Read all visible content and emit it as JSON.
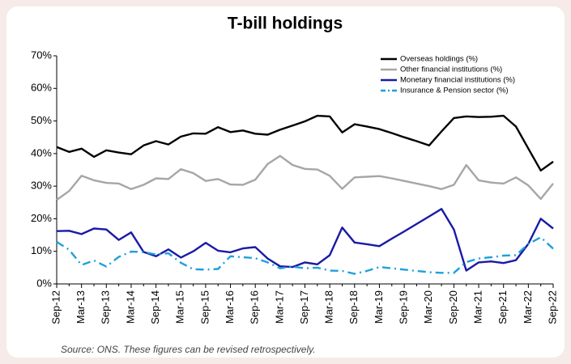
{
  "chart_data": {
    "type": "line",
    "title": "T-bill holdings",
    "source": "Source: ONS. These figures can be revised retrospectively.",
    "categories": [
      "Sep-12",
      null,
      "Mar-13",
      null,
      "Sep-13",
      null,
      "Mar-14",
      null,
      "Sep-14",
      null,
      "Mar-15",
      null,
      "Sep-15",
      null,
      "Mar-16",
      null,
      "Sep-16",
      null,
      "Mar-17",
      null,
      "Sep-17",
      null,
      "Mar-18",
      null,
      "Sep-18",
      null,
      "Mar-19",
      null,
      "Sep-19",
      null,
      "Mar-20",
      null,
      "Sep-20",
      null,
      "Mar-21",
      null,
      "Sep-21",
      null,
      "Mar-22",
      null,
      "Sep-22"
    ],
    "series": [
      {
        "name": "Overseas holdings (%)",
        "color": "#000000",
        "linestyle": "solid",
        "values": [
          42,
          40.5,
          41.5,
          39,
          41,
          40.3,
          39.8,
          42.5,
          43.8,
          42.8,
          45.2,
          46.2,
          46.1,
          48.1,
          46.6,
          47.1,
          46.1,
          45.8,
          47.3,
          48.6,
          49.9,
          51.6,
          51.4,
          46.5,
          49,
          48.3,
          47.5,
          46.3,
          45,
          43.8,
          42.5,
          46.8,
          50.9,
          51.4,
          51.2,
          51.3,
          51.6,
          48.3,
          41.5,
          34.8,
          37.5
        ]
      },
      {
        "name": "Other financial institutions (%)",
        "color": "#a6a6a6",
        "linestyle": "solid",
        "values": [
          25.8,
          28.5,
          33.2,
          31.8,
          31,
          30.8,
          29.1,
          30.4,
          32.4,
          32.2,
          35.2,
          34,
          31.6,
          32.2,
          30.5,
          30.4,
          32,
          36.8,
          39.3,
          36.5,
          35.3,
          35.1,
          33.2,
          29.2,
          32.7,
          32.9,
          33.1,
          32.4,
          31.6,
          30.8,
          30,
          29.1,
          30.4,
          36.5,
          31.8,
          31.1,
          30.8,
          32.7,
          30.2,
          26.1,
          30.8
        ]
      },
      {
        "name": "Monetary financial institutions (%)",
        "color": "#1a1aa6",
        "linestyle": "solid",
        "values": [
          16.2,
          16.3,
          15.3,
          17,
          16.7,
          13.5,
          15.8,
          9.8,
          8.5,
          10.6,
          8.1,
          10,
          12.6,
          10.2,
          9.7,
          10.9,
          11.3,
          7.8,
          5.4,
          5.2,
          6.6,
          6,
          8.8,
          17.3,
          12.7,
          12.2,
          11.6,
          13.9,
          16.1,
          18.4,
          20.7,
          23,
          16.7,
          4.1,
          6.6,
          6.9,
          6.4,
          7.3,
          12.3,
          20,
          17
        ]
      },
      {
        "name": "Insurance & Pension sector (%)",
        "color": "#1ea0dc",
        "linestyle": "dashdot",
        "values": [
          12.9,
          10.5,
          5.8,
          7.2,
          5.3,
          8.3,
          9.9,
          9.8,
          9,
          9.4,
          6.5,
          4.5,
          4.4,
          4.6,
          8.5,
          8.2,
          7.9,
          6.6,
          4.8,
          5.3,
          4.8,
          5,
          4.1,
          4,
          3.1,
          4,
          5.2,
          4.8,
          4.4,
          4,
          3.6,
          3.4,
          3.4,
          6.7,
          7.8,
          8.2,
          8.7,
          8.8,
          12.3,
          14.3,
          10.8
        ]
      }
    ],
    "ylim": [
      0,
      70
    ],
    "yticks": [
      {
        "value": 0,
        "label": "0%"
      },
      {
        "value": 10,
        "label": "10%"
      },
      {
        "value": 20,
        "label": "20%"
      },
      {
        "value": 30,
        "label": "30%"
      },
      {
        "value": 40,
        "label": "40%"
      },
      {
        "value": 50,
        "label": "50%"
      },
      {
        "value": 60,
        "label": "60%"
      },
      {
        "value": 70,
        "label": "70%"
      }
    ],
    "grid": false,
    "legend": "upper right"
  }
}
